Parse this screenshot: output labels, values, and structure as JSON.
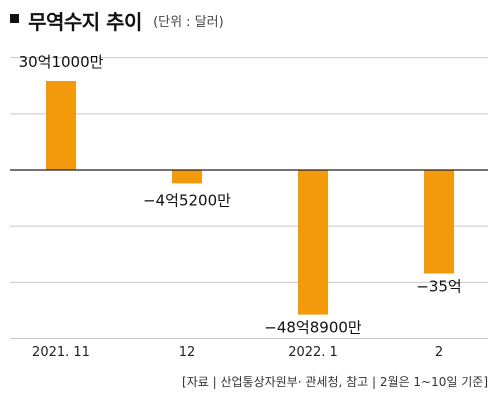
{
  "title": "무역수지 추이",
  "unit": "(단위 : 달러)",
  "source": "[자료 | 산업통상자원부· 관세청, 참고 | 2월은 1~10일 기준]",
  "colors": {
    "bar": "#F29A0C",
    "grid": "#c8c8c8",
    "zero": "#222222"
  },
  "chart_data": {
    "type": "bar",
    "title": "무역수지 추이",
    "categories": [
      "2021. 11",
      "12",
      "2022. 1",
      "2"
    ],
    "values": [
      3010000000,
      -452000000,
      -4890000000,
      -3500000000
    ],
    "data_labels": [
      "30억1000만",
      "−4억5200만",
      "−48억8900만",
      "−35억"
    ],
    "ylim": [
      -5500000000,
      3500000000
    ],
    "grid": true,
    "legend": "none"
  }
}
